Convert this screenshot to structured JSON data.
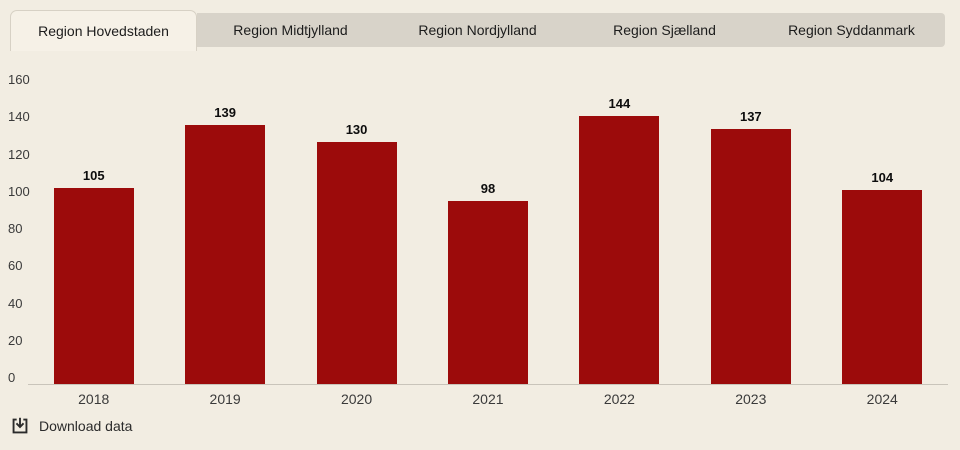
{
  "tabs": [
    {
      "label": "Region Hovedstaden",
      "active": true
    },
    {
      "label": "Region Midtjylland",
      "active": false
    },
    {
      "label": "Region Nordjylland",
      "active": false
    },
    {
      "label": "Region Sjælland",
      "active": false
    },
    {
      "label": "Region Syddanmark",
      "active": false
    }
  ],
  "chart_data": {
    "type": "bar",
    "categories": [
      "2018",
      "2019",
      "2020",
      "2021",
      "2022",
      "2023",
      "2024"
    ],
    "values": [
      105,
      139,
      130,
      98,
      144,
      137,
      104
    ],
    "title": "",
    "xlabel": "",
    "ylabel": "",
    "ylim": [
      0,
      160
    ],
    "yticks": [
      0,
      20,
      40,
      60,
      80,
      100,
      120,
      140,
      160
    ],
    "grid": false,
    "legend": "none",
    "data_labels": true,
    "bar_color": "#9c0b0b"
  },
  "footer": {
    "download_label": "Download data",
    "download_icon": "download-icon"
  },
  "colors": {
    "page_background": "#f2ede2",
    "active_tab_background": "#f6f1e7",
    "inactive_tab_background": "#d8d3c9",
    "tab_border": "#d7d1c5",
    "bar": "#9c0b0b",
    "axis_line": "#c9c4ba",
    "axis_text": "#3a3a3a",
    "value_label_text": "#0d0d0d",
    "footer_text": "#2b2b2b"
  }
}
